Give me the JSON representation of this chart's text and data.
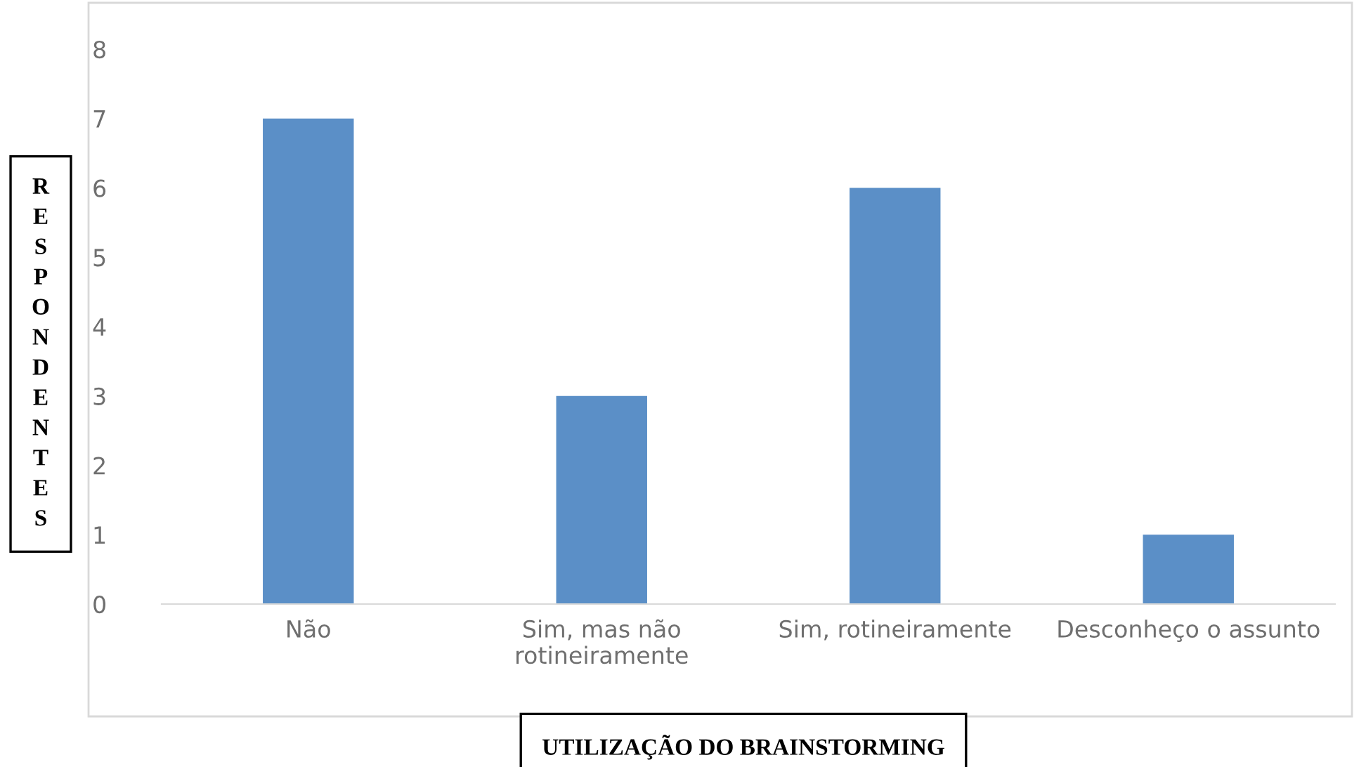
{
  "chart_data": {
    "type": "bar",
    "xlabel": "UTILIZAÇÃO DO BRAINSTORMING",
    "ylabel": "RESPONDENTES",
    "categories": [
      "Não",
      "Sim, mas não\nrotineiramente",
      "Sim, rotineiramente",
      "Desconheço o assunto"
    ],
    "values": [
      7,
      3,
      6,
      1
    ],
    "color": "#5b8fc7",
    "ylim": [
      0,
      8
    ],
    "yticks": [
      0,
      1,
      2,
      3,
      4,
      5,
      6,
      7,
      8
    ],
    "grid": false,
    "legend": false
  }
}
